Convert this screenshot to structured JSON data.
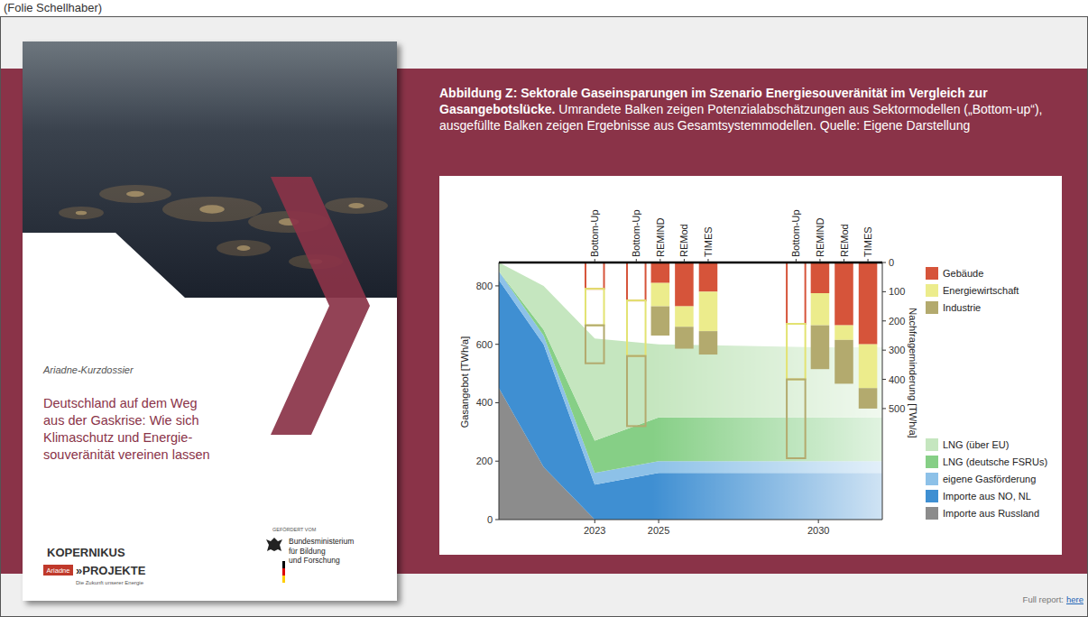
{
  "page": {
    "note": "(Folie Schellhaber)",
    "cover": {
      "series_label": "Ariadne-Kurzdossier",
      "title_lines": [
        "Deutschland auf dem Weg",
        "aus der Gaskrise: Wie sich",
        "Klimaschutz und Energie-",
        "souveränität vereinen lassen"
      ],
      "logo_left": [
        "KOPERNIKUS",
        "Ariadne",
        "»PROJEKTE",
        "Die Zukunft unserer Energie"
      ],
      "funder_label": "GEFÖRDERT VOM",
      "funder_lines": [
        "Bundesministerium",
        "für Bildung",
        "und Forschung"
      ]
    },
    "caption": {
      "bold": "Abbildung Z: Sektorale Gaseinsparungen im Szenario Energiesouveränität im Vergleich zur Gasangebotslücke.",
      "text": "Umrandete Balken zeigen Potenzialabschätzungen aus Sektormodellen („Bottom-up“), ausgefüllte Balken zeigen Ergebnisse aus Gesamtsystemmodellen. Quelle: Eigene Darstellung"
    },
    "footer": {
      "text": "Full report:",
      "link": "here"
    }
  },
  "chart_data": {
    "type": "area",
    "stacked": true,
    "grid": false,
    "legend": "right",
    "ylabel": "Gasangebot [TWh/a]",
    "y2label": "Nachfrageminderung [TWh/a]",
    "x": [
      2020,
      2021.4,
      2023,
      2025,
      2030,
      2032
    ],
    "xlim": [
      2020,
      2032
    ],
    "xticks": [
      2023,
      2025,
      2030
    ],
    "ylim": [
      0,
      880
    ],
    "yticks": [
      0,
      200,
      400,
      600,
      800
    ],
    "y2lim": [
      880,
      0
    ],
    "y2ticks": [
      0,
      100,
      200,
      300,
      400,
      500
    ],
    "model_labels": {
      "x": [
        2023,
        2024.3,
        2025.05,
        2025.8,
        2026.55,
        2029.3,
        2030.05,
        2030.8,
        2031.55
      ],
      "labels": [
        "Bottom-Up",
        "Bottom-Up",
        "REMIND",
        "REMod",
        "TIMES",
        "Bottom-Up",
        "REMIND",
        "REMod",
        "TIMES"
      ]
    },
    "series": [
      {
        "name": "Importe aus Russland",
        "type": "area",
        "color": "#8c8c8c",
        "values": [
          450,
          180,
          0,
          0,
          0,
          0
        ]
      },
      {
        "name": "Importe aus NO, NL",
        "type": "area",
        "color": "#3f8fd2",
        "values": [
          370,
          420,
          120,
          160,
          160,
          160
        ]
      },
      {
        "name": "eigene Gasförderung",
        "type": "area",
        "color": "#8dc1e8",
        "values": [
          30,
          30,
          40,
          40,
          40,
          40
        ]
      },
      {
        "name": "LNG (deutsche FSRUs)",
        "type": "area",
        "color": "#86cf86",
        "values": [
          0,
          20,
          110,
          150,
          150,
          150
        ]
      },
      {
        "name": "LNG (über EU)",
        "type": "area",
        "color": "#c5e6bf",
        "values": [
          30,
          150,
          350,
          250,
          240,
          240
        ]
      },
      {
        "name": "Gebäude",
        "type": "bar",
        "axis": "y2",
        "color": "#d6543a",
        "x": [
          2025.05,
          2025.8,
          2026.55,
          2030.05,
          2030.8,
          2031.55
        ],
        "values": [
          70,
          150,
          100,
          105,
          215,
          280
        ]
      },
      {
        "name": "Energiewirtschaft",
        "type": "bar",
        "axis": "y2",
        "color": "#ecec8c",
        "x": [
          2025.05,
          2025.8,
          2026.55,
          2030.05,
          2030.8,
          2031.55
        ],
        "values": [
          80,
          70,
          135,
          110,
          50,
          150
        ]
      },
      {
        "name": "Industrie",
        "type": "bar",
        "axis": "y2",
        "color": "#b3aa6e",
        "x": [
          2025.05,
          2025.8,
          2026.55,
          2030.05,
          2030.8,
          2031.55
        ],
        "values": [
          100,
          75,
          80,
          150,
          150,
          70
        ]
      },
      {
        "name": "Gebäude",
        "type": "bar",
        "axis": "y2",
        "marker": "outline",
        "color": "#d6543a",
        "x": [
          2023,
          2024.3,
          2029.3
        ],
        "values": [
          90,
          130,
          210
        ]
      },
      {
        "name": "Energiewirtschaft",
        "type": "bar",
        "axis": "y2",
        "marker": "outline",
        "color": "#e3e372",
        "x": [
          2023,
          2024.3,
          2029.3
        ],
        "values": [
          125,
          190,
          190
        ]
      },
      {
        "name": "Industrie",
        "type": "bar",
        "axis": "y2",
        "marker": "outline",
        "color": "#b3aa6e",
        "x": [
          2023,
          2024.3,
          2029.3
        ],
        "values": [
          130,
          240,
          270
        ]
      }
    ]
  }
}
